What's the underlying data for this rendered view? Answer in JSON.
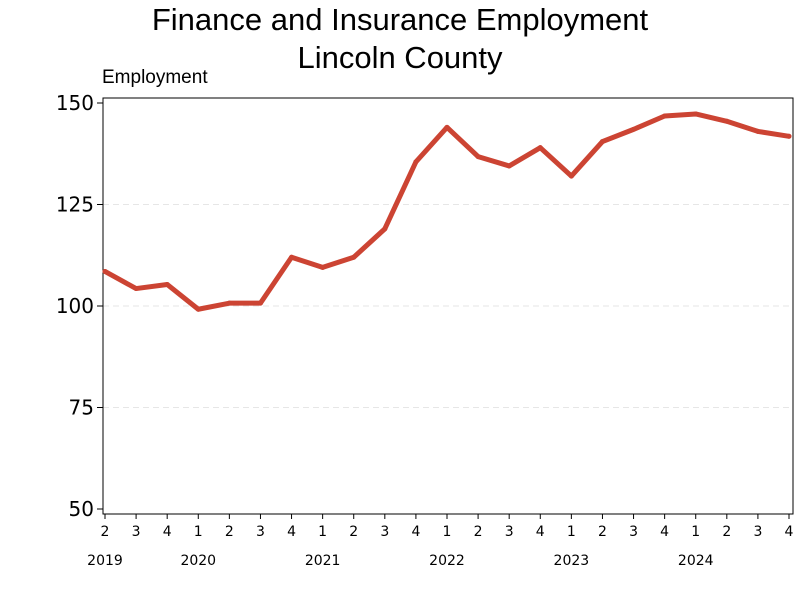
{
  "chart_data": {
    "type": "line",
    "title": "Finance and Insurance Employment",
    "subtitle": "Lincoln County",
    "ylabel": "Employment",
    "xlabel": "",
    "ylim": [
      50,
      150
    ],
    "yticks": [
      "50",
      "75",
      "100",
      "125",
      "150"
    ],
    "grid": "horizontal dashed",
    "legend": "none",
    "line_color": "#cc4433",
    "x": [
      "2019 Q2",
      "2019 Q3",
      "2019 Q4",
      "2020 Q1",
      "2020 Q2",
      "2020 Q3",
      "2020 Q4",
      "2021 Q1",
      "2021 Q2",
      "2021 Q3",
      "2021 Q4",
      "2022 Q1",
      "2022 Q2",
      "2022 Q3",
      "2022 Q4",
      "2023 Q1",
      "2023 Q2",
      "2023 Q3",
      "2023 Q4",
      "2024 Q1",
      "2024 Q2",
      "2024 Q3",
      "2024 Q4"
    ],
    "quarter_labels": [
      "2",
      "3",
      "4",
      "1",
      "2",
      "3",
      "4",
      "1",
      "2",
      "3",
      "4",
      "1",
      "2",
      "3",
      "4",
      "1",
      "2",
      "3",
      "4",
      "1",
      "2",
      "3",
      "4"
    ],
    "year_labels": [
      {
        "label": "2019",
        "quarter_index": 0
      },
      {
        "label": "2020",
        "quarter_index": 3
      },
      {
        "label": "2021",
        "quarter_index": 7
      },
      {
        "label": "2022",
        "quarter_index": 11
      },
      {
        "label": "2023",
        "quarter_index": 15
      },
      {
        "label": "2024",
        "quarter_index": 19
      }
    ],
    "series": [
      {
        "values": [
          108.5,
          104.3,
          105.3,
          99.2,
          100.7,
          100.7,
          112.0,
          109.5,
          112.0,
          119.0,
          135.5,
          144.0,
          136.8,
          134.5,
          139.0,
          132.0,
          140.5,
          143.5,
          146.8,
          147.3,
          145.5,
          143.0,
          141.8
        ]
      }
    ]
  }
}
